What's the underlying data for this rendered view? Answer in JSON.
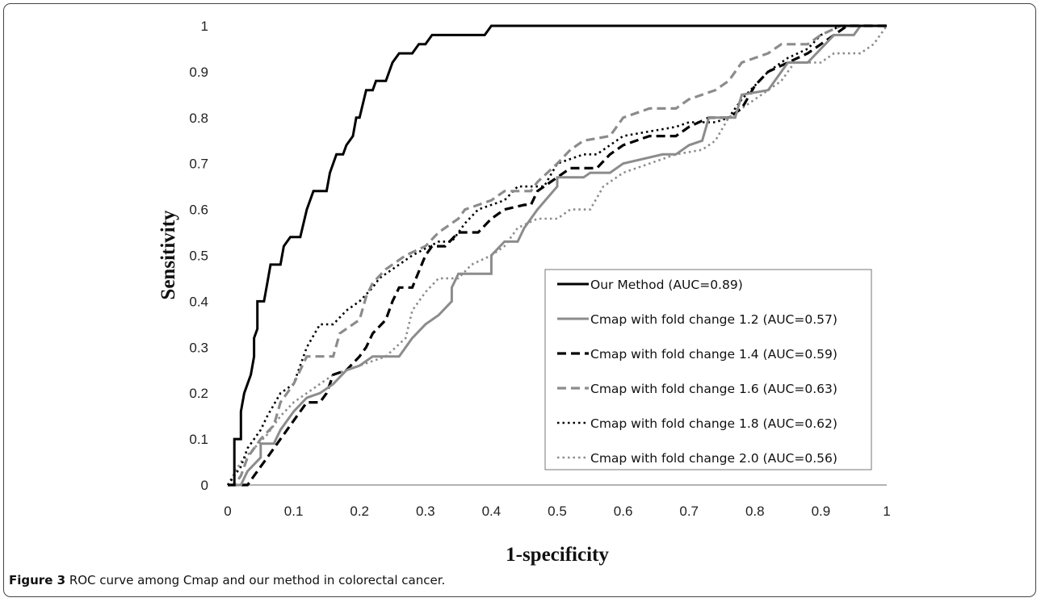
{
  "caption": {
    "label": "Figure 3",
    "text": "ROC curve among Cmap and our method in colorectal cancer."
  },
  "chart_data": {
    "type": "line",
    "xlabel": "1-specificity",
    "ylabel": "Sensitivity",
    "xlim": [
      0,
      1
    ],
    "ylim": [
      0,
      1
    ],
    "xticks": [
      "0",
      "0.1",
      "0.2",
      "0.3",
      "0.4",
      "0.5",
      "0.6",
      "0.7",
      "0.8",
      "0.9",
      "1"
    ],
    "yticks": [
      "0",
      "0.1",
      "0.2",
      "0.3",
      "0.4",
      "0.5",
      "0.6",
      "0.7",
      "0.8",
      "0.9",
      "1"
    ],
    "grid": false,
    "legend_position": "lower-right",
    "series": [
      {
        "name": "Our Method (AUC=0.89)",
        "color": "#000000",
        "style": "solid",
        "points": [
          [
            0,
            0
          ],
          [
            0.01,
            0
          ],
          [
            0.01,
            0.1
          ],
          [
            0.02,
            0.1
          ],
          [
            0.02,
            0.16
          ],
          [
            0.025,
            0.2
          ],
          [
            0.03,
            0.22
          ],
          [
            0.035,
            0.24
          ],
          [
            0.04,
            0.28
          ],
          [
            0.04,
            0.32
          ],
          [
            0.045,
            0.34
          ],
          [
            0.045,
            0.4
          ],
          [
            0.055,
            0.4
          ],
          [
            0.06,
            0.44
          ],
          [
            0.065,
            0.48
          ],
          [
            0.08,
            0.48
          ],
          [
            0.085,
            0.52
          ],
          [
            0.095,
            0.54
          ],
          [
            0.11,
            0.54
          ],
          [
            0.12,
            0.6
          ],
          [
            0.13,
            0.64
          ],
          [
            0.15,
            0.64
          ],
          [
            0.155,
            0.68
          ],
          [
            0.165,
            0.72
          ],
          [
            0.175,
            0.72
          ],
          [
            0.18,
            0.74
          ],
          [
            0.19,
            0.76
          ],
          [
            0.195,
            0.8
          ],
          [
            0.2,
            0.8
          ],
          [
            0.21,
            0.86
          ],
          [
            0.22,
            0.86
          ],
          [
            0.225,
            0.88
          ],
          [
            0.24,
            0.88
          ],
          [
            0.245,
            0.9
          ],
          [
            0.25,
            0.92
          ],
          [
            0.26,
            0.94
          ],
          [
            0.28,
            0.94
          ],
          [
            0.29,
            0.96
          ],
          [
            0.3,
            0.96
          ],
          [
            0.31,
            0.98
          ],
          [
            0.39,
            0.98
          ],
          [
            0.4,
            1
          ],
          [
            1,
            1
          ]
        ]
      },
      {
        "name": "Cmap with fold change 1.2 (AUC=0.57)",
        "color": "#8c8c8c",
        "style": "solid",
        "points": [
          [
            0,
            0
          ],
          [
            0.02,
            0
          ],
          [
            0.03,
            0.03
          ],
          [
            0.05,
            0.06
          ],
          [
            0.05,
            0.09
          ],
          [
            0.07,
            0.09
          ],
          [
            0.08,
            0.12
          ],
          [
            0.1,
            0.16
          ],
          [
            0.12,
            0.19
          ],
          [
            0.14,
            0.2
          ],
          [
            0.16,
            0.22
          ],
          [
            0.18,
            0.25
          ],
          [
            0.2,
            0.26
          ],
          [
            0.22,
            0.28
          ],
          [
            0.26,
            0.28
          ],
          [
            0.28,
            0.32
          ],
          [
            0.3,
            0.35
          ],
          [
            0.32,
            0.37
          ],
          [
            0.34,
            0.4
          ],
          [
            0.34,
            0.43
          ],
          [
            0.35,
            0.46
          ],
          [
            0.38,
            0.46
          ],
          [
            0.4,
            0.46
          ],
          [
            0.4,
            0.5
          ],
          [
            0.42,
            0.53
          ],
          [
            0.44,
            0.53
          ],
          [
            0.45,
            0.56
          ],
          [
            0.47,
            0.6
          ],
          [
            0.5,
            0.65
          ],
          [
            0.5,
            0.67
          ],
          [
            0.54,
            0.67
          ],
          [
            0.55,
            0.68
          ],
          [
            0.58,
            0.68
          ],
          [
            0.6,
            0.7
          ],
          [
            0.66,
            0.72
          ],
          [
            0.68,
            0.72
          ],
          [
            0.7,
            0.74
          ],
          [
            0.72,
            0.75
          ],
          [
            0.73,
            0.8
          ],
          [
            0.77,
            0.8
          ],
          [
            0.78,
            0.85
          ],
          [
            0.82,
            0.86
          ],
          [
            0.83,
            0.88
          ],
          [
            0.85,
            0.92
          ],
          [
            0.88,
            0.92
          ],
          [
            0.9,
            0.95
          ],
          [
            0.92,
            0.98
          ],
          [
            0.95,
            0.98
          ],
          [
            0.96,
            1
          ],
          [
            1,
            1
          ]
        ]
      },
      {
        "name": "Cmap with fold change 1.4 (AUC=0.59)",
        "color": "#000000",
        "style": "dashed-bold",
        "points": [
          [
            0,
            0
          ],
          [
            0.03,
            0
          ],
          [
            0.04,
            0.02
          ],
          [
            0.05,
            0.04
          ],
          [
            0.06,
            0.06
          ],
          [
            0.08,
            0.1
          ],
          [
            0.1,
            0.14
          ],
          [
            0.12,
            0.18
          ],
          [
            0.14,
            0.18
          ],
          [
            0.15,
            0.2
          ],
          [
            0.16,
            0.24
          ],
          [
            0.18,
            0.25
          ],
          [
            0.2,
            0.28
          ],
          [
            0.21,
            0.3
          ],
          [
            0.22,
            0.33
          ],
          [
            0.24,
            0.36
          ],
          [
            0.25,
            0.4
          ],
          [
            0.26,
            0.43
          ],
          [
            0.28,
            0.43
          ],
          [
            0.3,
            0.5
          ],
          [
            0.31,
            0.52
          ],
          [
            0.33,
            0.52
          ],
          [
            0.35,
            0.55
          ],
          [
            0.38,
            0.55
          ],
          [
            0.4,
            0.58
          ],
          [
            0.42,
            0.6
          ],
          [
            0.45,
            0.61
          ],
          [
            0.46,
            0.61
          ],
          [
            0.47,
            0.64
          ],
          [
            0.5,
            0.67
          ],
          [
            0.52,
            0.69
          ],
          [
            0.56,
            0.69
          ],
          [
            0.58,
            0.72
          ],
          [
            0.6,
            0.74
          ],
          [
            0.64,
            0.76
          ],
          [
            0.68,
            0.76
          ],
          [
            0.7,
            0.78
          ],
          [
            0.73,
            0.8
          ],
          [
            0.76,
            0.8
          ],
          [
            0.78,
            0.82
          ],
          [
            0.8,
            0.87
          ],
          [
            0.82,
            0.9
          ],
          [
            0.85,
            0.92
          ],
          [
            0.88,
            0.94
          ],
          [
            0.9,
            0.96
          ],
          [
            0.92,
            0.98
          ],
          [
            0.94,
            1
          ],
          [
            1,
            1
          ]
        ]
      },
      {
        "name": "Cmap with fold change 1.6 (AUC=0.63)",
        "color": "#8c8c8c",
        "style": "dashed-bold",
        "points": [
          [
            0,
            0
          ],
          [
            0.01,
            0
          ],
          [
            0.02,
            0.02
          ],
          [
            0.03,
            0.06
          ],
          [
            0.05,
            0.1
          ],
          [
            0.07,
            0.13
          ],
          [
            0.08,
            0.18
          ],
          [
            0.1,
            0.22
          ],
          [
            0.12,
            0.28
          ],
          [
            0.16,
            0.28
          ],
          [
            0.17,
            0.33
          ],
          [
            0.2,
            0.36
          ],
          [
            0.21,
            0.41
          ],
          [
            0.22,
            0.44
          ],
          [
            0.24,
            0.47
          ],
          [
            0.27,
            0.5
          ],
          [
            0.3,
            0.52
          ],
          [
            0.32,
            0.55
          ],
          [
            0.35,
            0.58
          ],
          [
            0.36,
            0.6
          ],
          [
            0.4,
            0.62
          ],
          [
            0.42,
            0.64
          ],
          [
            0.46,
            0.64
          ],
          [
            0.47,
            0.66
          ],
          [
            0.5,
            0.7
          ],
          [
            0.52,
            0.73
          ],
          [
            0.54,
            0.75
          ],
          [
            0.58,
            0.76
          ],
          [
            0.6,
            0.8
          ],
          [
            0.64,
            0.82
          ],
          [
            0.68,
            0.82
          ],
          [
            0.7,
            0.84
          ],
          [
            0.74,
            0.86
          ],
          [
            0.76,
            0.88
          ],
          [
            0.78,
            0.92
          ],
          [
            0.82,
            0.94
          ],
          [
            0.84,
            0.96
          ],
          [
            0.88,
            0.96
          ],
          [
            0.9,
            0.98
          ],
          [
            0.93,
            1
          ],
          [
            1,
            1
          ]
        ]
      },
      {
        "name": "Cmap with fold change 1.8 (AUC=0.62)",
        "color": "#000000",
        "style": "dotted",
        "points": [
          [
            0,
            0
          ],
          [
            0.02,
            0.04
          ],
          [
            0.03,
            0.08
          ],
          [
            0.05,
            0.12
          ],
          [
            0.06,
            0.15
          ],
          [
            0.08,
            0.2
          ],
          [
            0.1,
            0.22
          ],
          [
            0.12,
            0.3
          ],
          [
            0.14,
            0.35
          ],
          [
            0.16,
            0.35
          ],
          [
            0.18,
            0.38
          ],
          [
            0.2,
            0.4
          ],
          [
            0.22,
            0.43
          ],
          [
            0.23,
            0.45
          ],
          [
            0.25,
            0.47
          ],
          [
            0.28,
            0.5
          ],
          [
            0.32,
            0.53
          ],
          [
            0.34,
            0.53
          ],
          [
            0.36,
            0.57
          ],
          [
            0.38,
            0.6
          ],
          [
            0.42,
            0.62
          ],
          [
            0.44,
            0.65
          ],
          [
            0.48,
            0.65
          ],
          [
            0.5,
            0.7
          ],
          [
            0.54,
            0.72
          ],
          [
            0.56,
            0.72
          ],
          [
            0.58,
            0.74
          ],
          [
            0.6,
            0.76
          ],
          [
            0.64,
            0.77
          ],
          [
            0.68,
            0.78
          ],
          [
            0.7,
            0.79
          ],
          [
            0.74,
            0.79
          ],
          [
            0.76,
            0.8
          ],
          [
            0.78,
            0.84
          ],
          [
            0.8,
            0.87
          ],
          [
            0.82,
            0.9
          ],
          [
            0.85,
            0.93
          ],
          [
            0.88,
            0.95
          ],
          [
            0.9,
            0.98
          ],
          [
            0.93,
            1
          ],
          [
            1,
            1
          ]
        ]
      },
      {
        "name": "Cmap with fold change 2.0 (AUC=0.56)",
        "color": "#8c8c8c",
        "style": "dotted",
        "points": [
          [
            0,
            0
          ],
          [
            0.02,
            0.05
          ],
          [
            0.04,
            0.08
          ],
          [
            0.06,
            0.11
          ],
          [
            0.08,
            0.15
          ],
          [
            0.1,
            0.18
          ],
          [
            0.12,
            0.2
          ],
          [
            0.14,
            0.22
          ],
          [
            0.16,
            0.24
          ],
          [
            0.2,
            0.26
          ],
          [
            0.22,
            0.27
          ],
          [
            0.24,
            0.28
          ],
          [
            0.27,
            0.32
          ],
          [
            0.28,
            0.38
          ],
          [
            0.3,
            0.42
          ],
          [
            0.32,
            0.45
          ],
          [
            0.35,
            0.45
          ],
          [
            0.37,
            0.48
          ],
          [
            0.4,
            0.5
          ],
          [
            0.42,
            0.52
          ],
          [
            0.44,
            0.56
          ],
          [
            0.47,
            0.58
          ],
          [
            0.5,
            0.58
          ],
          [
            0.52,
            0.6
          ],
          [
            0.55,
            0.6
          ],
          [
            0.57,
            0.65
          ],
          [
            0.6,
            0.68
          ],
          [
            0.64,
            0.7
          ],
          [
            0.68,
            0.72
          ],
          [
            0.72,
            0.73
          ],
          [
            0.74,
            0.75
          ],
          [
            0.76,
            0.8
          ],
          [
            0.8,
            0.84
          ],
          [
            0.82,
            0.86
          ],
          [
            0.84,
            0.88
          ],
          [
            0.86,
            0.92
          ],
          [
            0.9,
            0.92
          ],
          [
            0.92,
            0.94
          ],
          [
            0.96,
            0.94
          ],
          [
            0.98,
            0.96
          ],
          [
            1,
            1
          ]
        ]
      }
    ]
  }
}
